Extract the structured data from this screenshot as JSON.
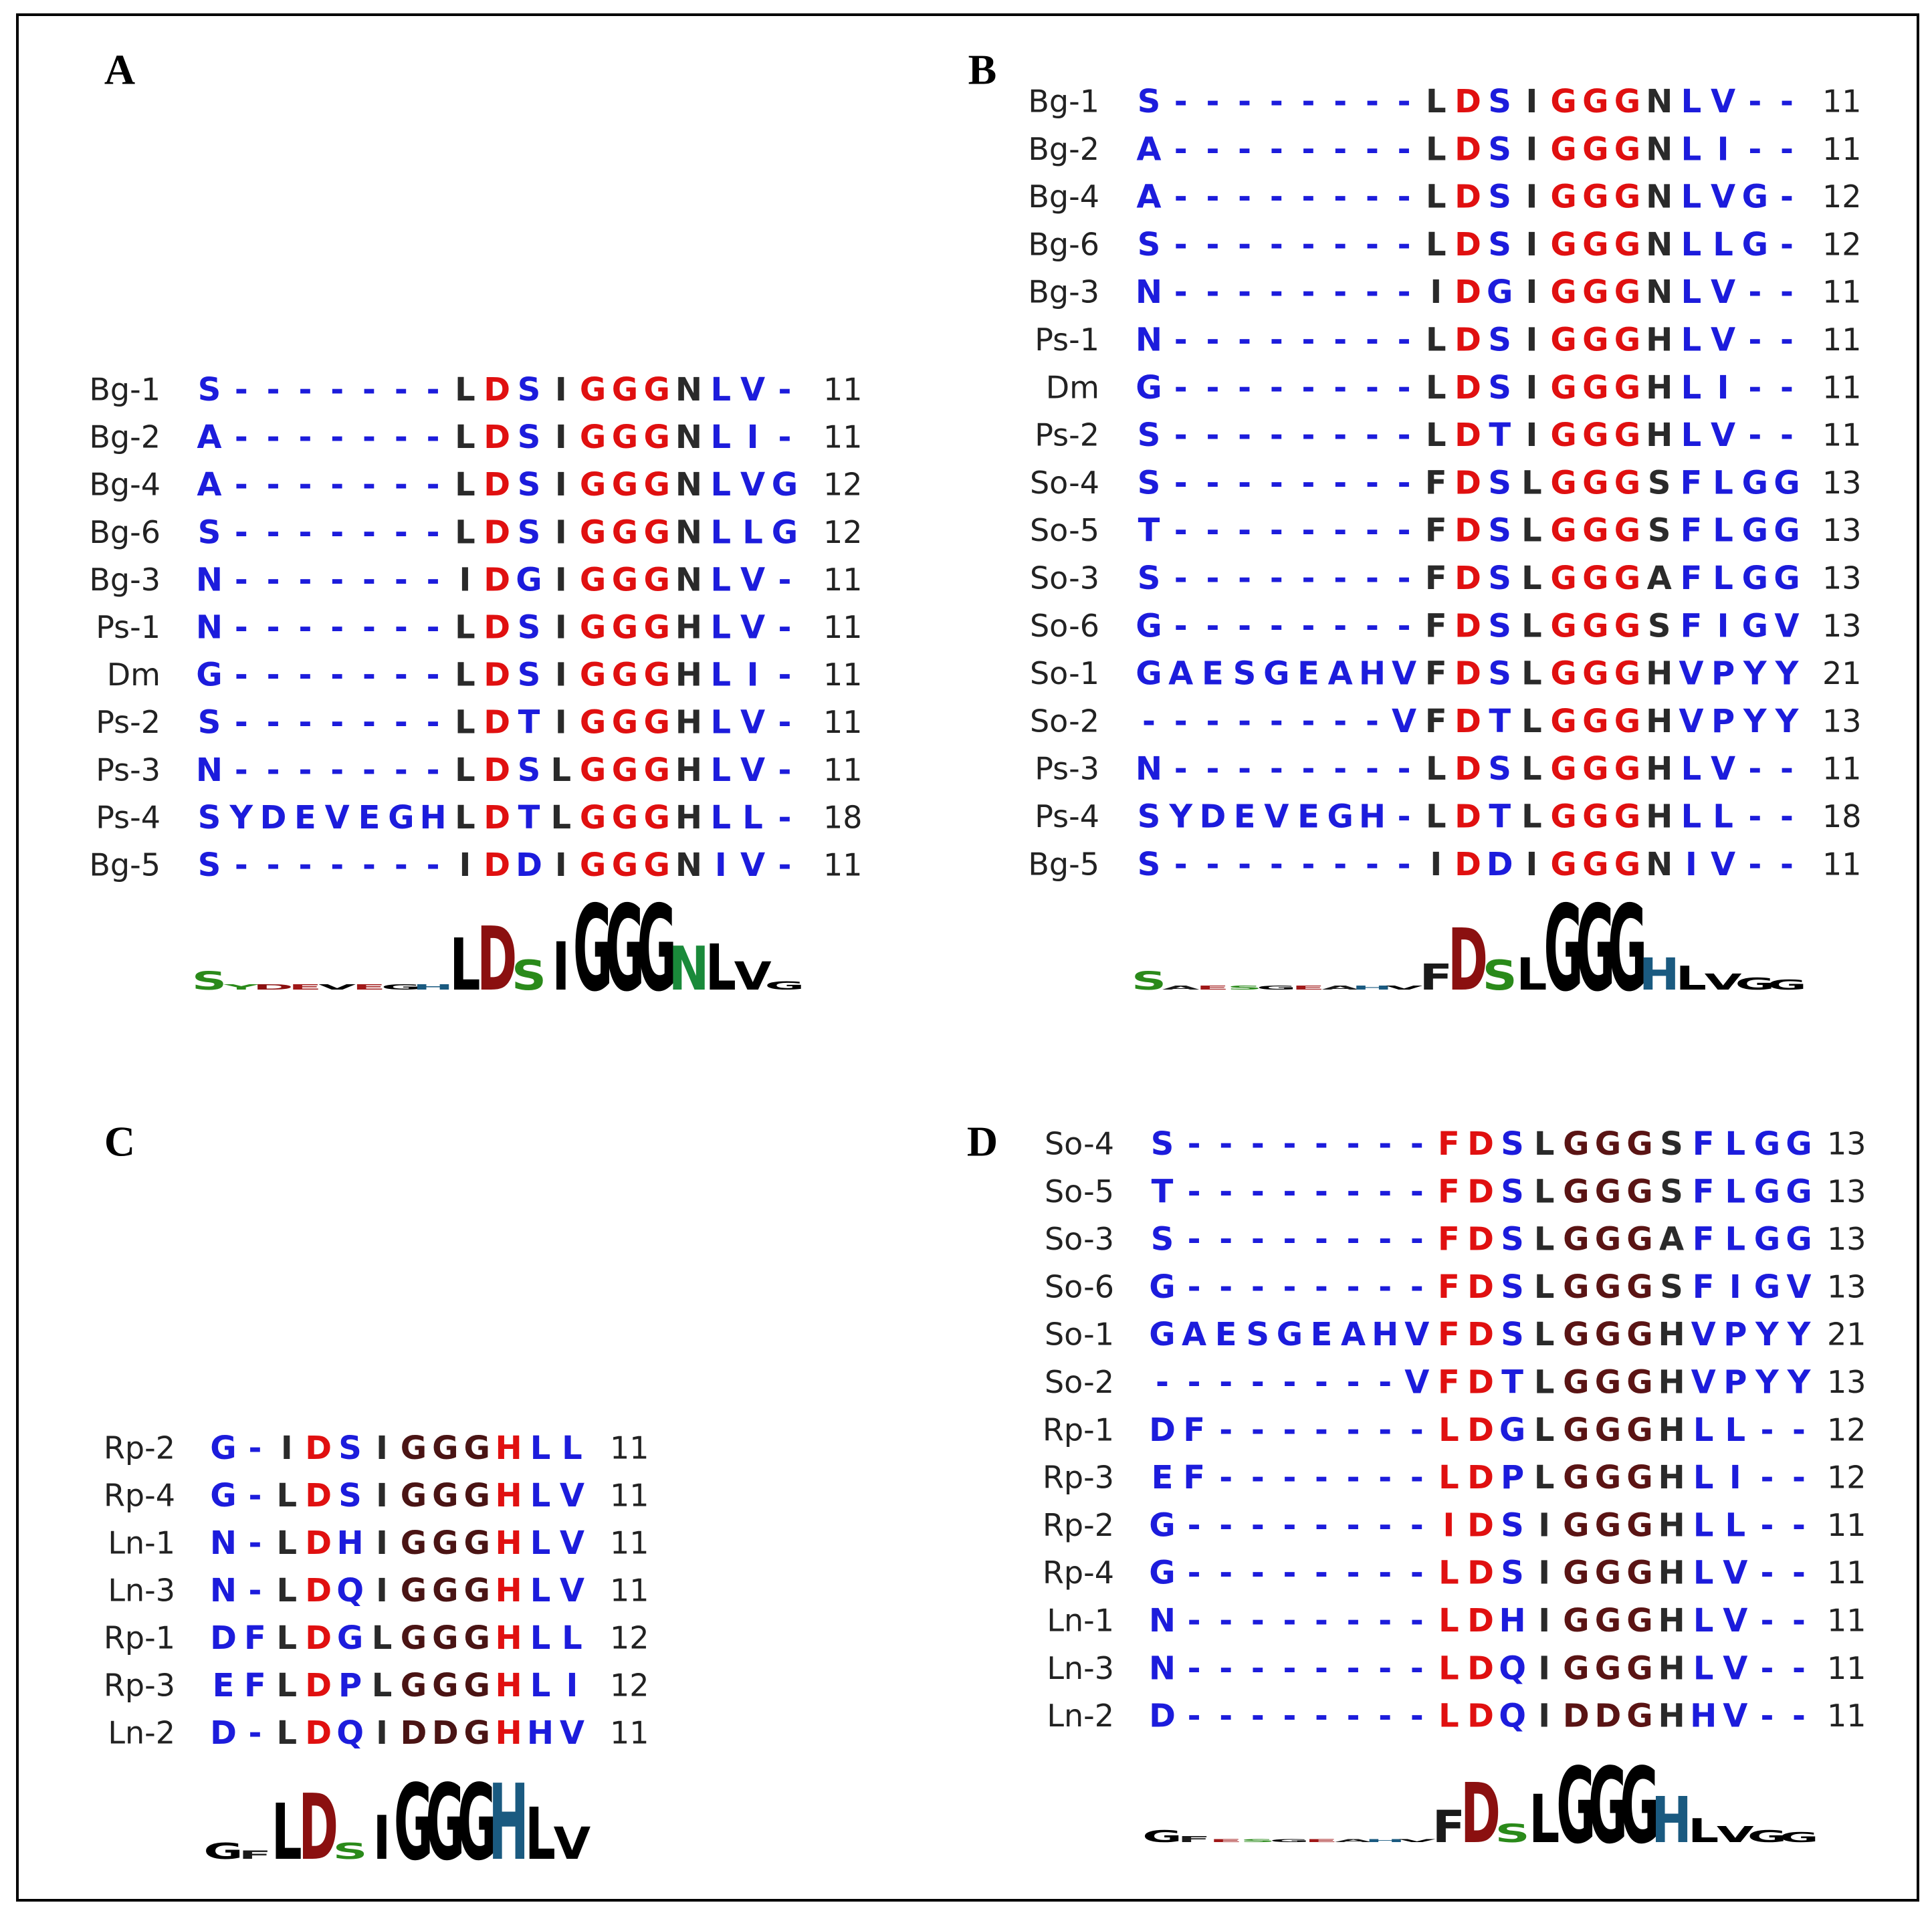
{
  "panels": [
    {
      "label": "A",
      "rows": [
        {
          "name": "Bg-1",
          "sequence": "S-------LDSIGGGNLV-",
          "length": 11
        },
        {
          "name": "Bg-2",
          "sequence": "A-------LDSIGGGNLI-",
          "length": 11
        },
        {
          "name": "Bg-4",
          "sequence": "A-------LDSIGGGNLVG",
          "length": 12
        },
        {
          "name": "Bg-6",
          "sequence": "S-------LDSIGGGNLLG",
          "length": 12
        },
        {
          "name": "Bg-3",
          "sequence": "N-------IDGIGGGNLV-",
          "length": 11
        },
        {
          "name": "Ps-1",
          "sequence": "N-------LDSIGGGHLV-",
          "length": 11
        },
        {
          "name": "Dm",
          "sequence": "G-------LDSIGGGHLI-",
          "length": 11
        },
        {
          "name": "Ps-2",
          "sequence": "S-------LDTIGGGHLV-",
          "length": 11
        },
        {
          "name": "Ps-3",
          "sequence": "N-------LDSLGGGHLV-",
          "length": 11
        },
        {
          "name": "Ps-4",
          "sequence": "SYDEVEGHLDTLGGGHLL-",
          "length": 18
        },
        {
          "name": "Bg-5",
          "sequence": "S-------IDDIGGGNIV-",
          "length": 11
        }
      ],
      "column_colors": [
        "#1c1cdc",
        "#1c1cdc",
        "#1c1cdc",
        "#1c1cdc",
        "#1c1cdc",
        "#1c1cdc",
        "#1c1cdc",
        "#1c1cdc",
        "#2a2a2a",
        "#e01010",
        "#1c1cdc",
        "#2a2a2a",
        "#e01010",
        "#e01010",
        "#e01010",
        "#2a2a2a",
        "#1c1cdc",
        "#1c1cdc",
        "#1c1cdc"
      ],
      "logo": [
        {
          "letter": "S",
          "bits": 0.9
        },
        {
          "letter": "Y",
          "bits": 0.25
        },
        {
          "letter": "D",
          "bits": 0.25
        },
        {
          "letter": "E",
          "bits": 0.25
        },
        {
          "letter": "V",
          "bits": 0.25
        },
        {
          "letter": "E",
          "bits": 0.25
        },
        {
          "letter": "G",
          "bits": 0.25
        },
        {
          "letter": "H",
          "bits": 0.25
        },
        {
          "letter": "L",
          "bits": 2.6
        },
        {
          "letter": "D",
          "bits": 3.2
        },
        {
          "letter": "S",
          "bits": 1.5
        },
        {
          "letter": "I",
          "bits": 2.4
        },
        {
          "letter": "G",
          "bits": 4.3
        },
        {
          "letter": "G",
          "bits": 4.3
        },
        {
          "letter": "G",
          "bits": 4.3
        },
        {
          "letter": "N",
          "bits": 2.2
        },
        {
          "letter": "L",
          "bits": 2.3
        },
        {
          "letter": "V",
          "bits": 1.4
        },
        {
          "letter": "G",
          "bits": 0.4
        }
      ]
    },
    {
      "label": "B",
      "rows": [
        {
          "name": "Bg-1",
          "sequence": "S--------LDSIGGGNLV--",
          "length": 11
        },
        {
          "name": "Bg-2",
          "sequence": "A--------LDSIGGGNLI--",
          "length": 11
        },
        {
          "name": "Bg-4",
          "sequence": "A--------LDSIGGGNLVG-",
          "length": 12
        },
        {
          "name": "Bg-6",
          "sequence": "S--------LDSIGGGNLLG-",
          "length": 12
        },
        {
          "name": "Bg-3",
          "sequence": "N--------IDGIGGGNLV--",
          "length": 11
        },
        {
          "name": "Ps-1",
          "sequence": "N--------LDSIGGGHLV--",
          "length": 11
        },
        {
          "name": "Dm",
          "sequence": "G--------LDSIGGGHLI--",
          "length": 11
        },
        {
          "name": "Ps-2",
          "sequence": "S--------LDTIGGGHLV--",
          "length": 11
        },
        {
          "name": "So-4",
          "sequence": "S--------FDSLGGGSFLGG",
          "length": 13
        },
        {
          "name": "So-5",
          "sequence": "T--------FDSLGGGSFLGG",
          "length": 13
        },
        {
          "name": "So-3",
          "sequence": "S--------FDSLGGGAFLGG",
          "length": 13
        },
        {
          "name": "So-6",
          "sequence": "G--------FDSLGGGSFIGV",
          "length": 13
        },
        {
          "name": "So-1",
          "sequence": "GAESGEAHVFDSLGGGHVPYY",
          "length": 21
        },
        {
          "name": "So-2",
          "sequence": "--------VFDTLGGGHVPYY",
          "length": 13
        },
        {
          "name": "Ps-3",
          "sequence": "N--------LDSLGGGHLV--",
          "length": 11
        },
        {
          "name": "Ps-4",
          "sequence": "SYDEVEGH-LDTLGGGHLL--",
          "length": 18
        },
        {
          "name": "Bg-5",
          "sequence": "S--------IDDIGGGNIV--",
          "length": 11
        }
      ],
      "column_colors": [
        "#1c1cdc",
        "#1c1cdc",
        "#1c1cdc",
        "#1c1cdc",
        "#1c1cdc",
        "#1c1cdc",
        "#1c1cdc",
        "#1c1cdc",
        "#1c1cdc",
        "#2a2a2a",
        "#e01010",
        "#1c1cdc",
        "#2a2a2a",
        "#e01010",
        "#e01010",
        "#e01010",
        "#2a2a2a",
        "#1c1cdc",
        "#1c1cdc",
        "#1c1cdc",
        "#1c1cdc"
      ],
      "logo": [
        {
          "letter": "S",
          "bits": 0.9
        },
        {
          "letter": "A",
          "bits": 0.2
        },
        {
          "letter": "E",
          "bits": 0.2
        },
        {
          "letter": "S",
          "bits": 0.2
        },
        {
          "letter": "G",
          "bits": 0.2
        },
        {
          "letter": "E",
          "bits": 0.2
        },
        {
          "letter": "A",
          "bits": 0.2
        },
        {
          "letter": "H",
          "bits": 0.2
        },
        {
          "letter": "V",
          "bits": 0.2
        },
        {
          "letter": "F",
          "bits": 1.3
        },
        {
          "letter": "D",
          "bits": 3.1
        },
        {
          "letter": "S",
          "bits": 1.5
        },
        {
          "letter": "L",
          "bits": 1.6
        },
        {
          "letter": "G",
          "bits": 4.3
        },
        {
          "letter": "G",
          "bits": 4.3
        },
        {
          "letter": "G",
          "bits": 4.3
        },
        {
          "letter": "H",
          "bits": 1.6
        },
        {
          "letter": "L",
          "bits": 1.2
        },
        {
          "letter": "V",
          "bits": 0.8
        },
        {
          "letter": "G",
          "bits": 0.6
        },
        {
          "letter": "G",
          "bits": 0.5
        }
      ]
    },
    {
      "label": "C",
      "rows": [
        {
          "name": "Rp-2",
          "sequence": "G-IDSIGGGHLL",
          "length": 11
        },
        {
          "name": "Rp-4",
          "sequence": "G-LDSIGGGHLV",
          "length": 11
        },
        {
          "name": "Ln-1",
          "sequence": "N-LDHIGGGHLV",
          "length": 11
        },
        {
          "name": "Ln-3",
          "sequence": "N-LDQIGGGHLV",
          "length": 11
        },
        {
          "name": "Rp-1",
          "sequence": "DFLDGLGGGHLL",
          "length": 12
        },
        {
          "name": "Rp-3",
          "sequence": "EFLDPLGGGHLI",
          "length": 12
        },
        {
          "name": "Ln-2",
          "sequence": "D-LDQIDDGHHV",
          "length": 11
        }
      ],
      "column_colors": [
        "#1c1cdc",
        "#1c1cdc",
        "#2a2a2a",
        "#e01010",
        "#1c1cdc",
        "#2a2a2a",
        "#4a1414",
        "#4a1414",
        "#4a1414",
        "#e01010",
        "#1c1cdc",
        "#1c1cdc"
      ],
      "logo": [
        {
          "letter": "G",
          "bits": 0.8
        },
        {
          "letter": "F",
          "bits": 0.4
        },
        {
          "letter": "L",
          "bits": 2.8
        },
        {
          "letter": "D",
          "bits": 3.3
        },
        {
          "letter": "S",
          "bits": 0.8
        },
        {
          "letter": "I",
          "bits": 2.2
        },
        {
          "letter": "G",
          "bits": 3.8
        },
        {
          "letter": "G",
          "bits": 3.8
        },
        {
          "letter": "G",
          "bits": 3.8
        },
        {
          "letter": "H",
          "bits": 3.8
        },
        {
          "letter": "L",
          "bits": 2.6
        },
        {
          "letter": "V",
          "bits": 1.6
        }
      ]
    },
    {
      "label": "D",
      "rows": [
        {
          "name": "So-4",
          "sequence": "S--------FDSLGGGSFLGG",
          "length": 13
        },
        {
          "name": "So-5",
          "sequence": "T--------FDSLGGGSFLGG",
          "length": 13
        },
        {
          "name": "So-3",
          "sequence": "S--------FDSLGGGAFLGG",
          "length": 13
        },
        {
          "name": "So-6",
          "sequence": "G--------FDSLGGGSFIGV",
          "length": 13
        },
        {
          "name": "So-1",
          "sequence": "GAESGEAHVFDSLGGGHVPYY",
          "length": 21
        },
        {
          "name": "So-2",
          "sequence": "--------VFDTLGGGHVPYY",
          "length": 13
        },
        {
          "name": "Rp-1",
          "sequence": "DF-------LDGLGGGHLL--",
          "length": 12
        },
        {
          "name": "Rp-3",
          "sequence": "EF-------LDPLGGGHLI--",
          "length": 12
        },
        {
          "name": "Rp-2",
          "sequence": "G--------IDSIGGGHLL--",
          "length": 11
        },
        {
          "name": "Rp-4",
          "sequence": "G--------LDSIGGGHLV--",
          "length": 11
        },
        {
          "name": "Ln-1",
          "sequence": "N--------LDHIGGGHLV--",
          "length": 11
        },
        {
          "name": "Ln-3",
          "sequence": "N--------LDQIGGGHLV--",
          "length": 11
        },
        {
          "name": "Ln-2",
          "sequence": "D--------LDQIDDGHHV--",
          "length": 11
        }
      ],
      "column_colors": [
        "#1c1cdc",
        "#1c1cdc",
        "#1c1cdc",
        "#1c1cdc",
        "#1c1cdc",
        "#1c1cdc",
        "#1c1cdc",
        "#1c1cdc",
        "#1c1cdc",
        "#e01010",
        "#e01010",
        "#1c1cdc",
        "#2a2a2a",
        "#5a1414",
        "#5a1414",
        "#5a1414",
        "#2a2a2a",
        "#1c1cdc",
        "#1c1cdc",
        "#1c1cdc",
        "#1c1cdc"
      ],
      "logo": [
        {
          "letter": "G",
          "bits": 0.6
        },
        {
          "letter": "F",
          "bits": 0.3
        },
        {
          "letter": "E",
          "bits": 0.15
        },
        {
          "letter": "S",
          "bits": 0.15
        },
        {
          "letter": "G",
          "bits": 0.15
        },
        {
          "letter": "E",
          "bits": 0.15
        },
        {
          "letter": "A",
          "bits": 0.15
        },
        {
          "letter": "H",
          "bits": 0.15
        },
        {
          "letter": "V",
          "bits": 0.15
        },
        {
          "letter": "F",
          "bits": 1.6
        },
        {
          "letter": "D",
          "bits": 3.0
        },
        {
          "letter": "S",
          "bits": 0.9
        },
        {
          "letter": "L",
          "bits": 2.4
        },
        {
          "letter": "G",
          "bits": 3.8
        },
        {
          "letter": "G",
          "bits": 3.8
        },
        {
          "letter": "G",
          "bits": 3.8
        },
        {
          "letter": "H",
          "bits": 2.3
        },
        {
          "letter": "L",
          "bits": 1.2
        },
        {
          "letter": "V",
          "bits": 0.8
        },
        {
          "letter": "G",
          "bits": 0.6
        },
        {
          "letter": "G",
          "bits": 0.5
        }
      ]
    }
  ],
  "logo_colors": {
    "A": "#1a1a1a",
    "D": "#8b1010",
    "E": "#a01818",
    "F": "#1a1a1a",
    "G": "#000000",
    "H": "#1a5a80",
    "I": "#000000",
    "L": "#000000",
    "N": "#1a8a3a",
    "S": "#2a8a1a",
    "V": "#000000",
    "Y": "#2a8a1a"
  }
}
